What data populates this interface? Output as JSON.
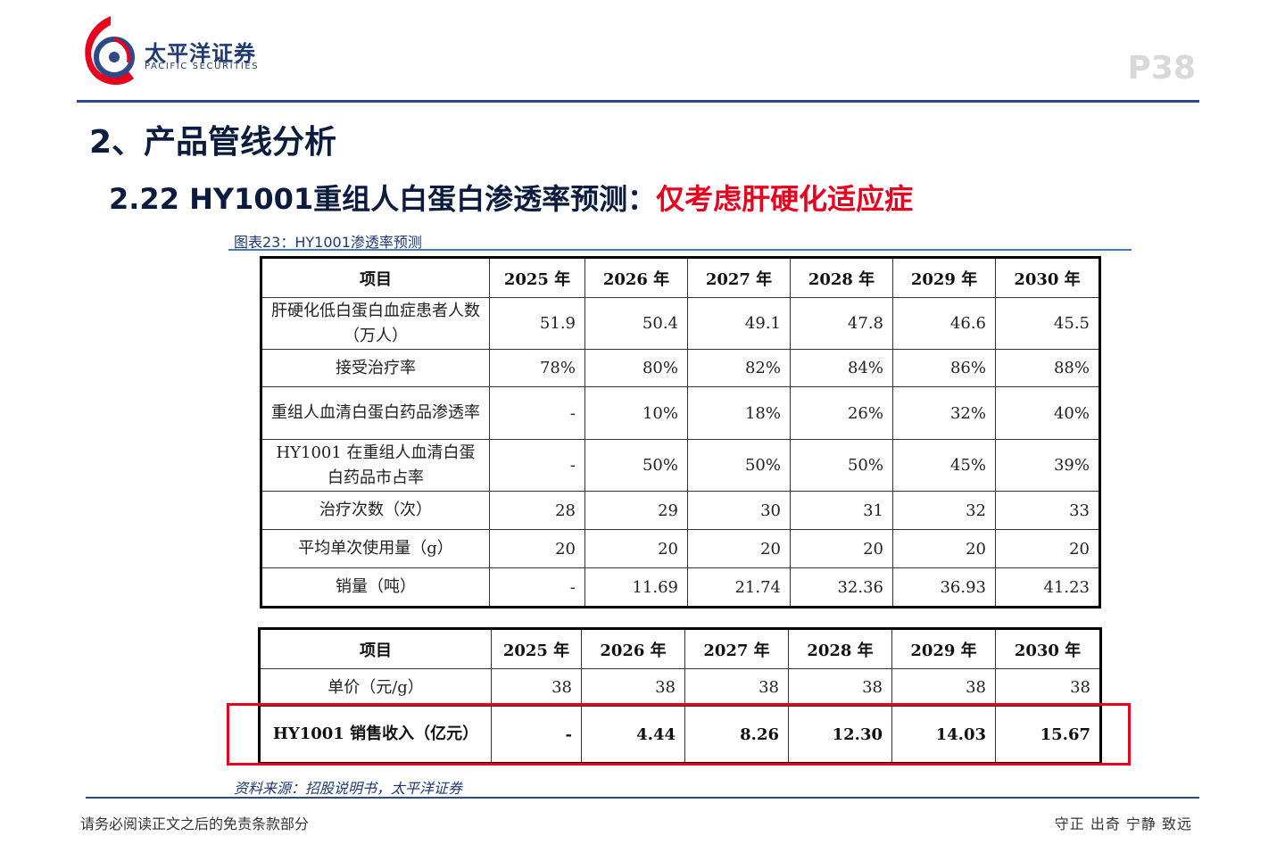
{
  "header": {
    "brand_cn": "太平洋证券",
    "brand_en": "PACIFIC SECURITIES",
    "page_number": "P38",
    "logo_icon": "pacific-securities-logo-icon",
    "brand_color": "#1f3a73",
    "accent_red": "#e8001c"
  },
  "section_title": "2、产品管线分析",
  "subtitle": {
    "prefix": "2.22 HY1001重组人白蛋白渗透率预测：",
    "highlight": "仅考虑肝硬化适应症"
  },
  "figure_caption": "图表23：HY1001渗透率预测",
  "table1": {
    "headers": [
      "项目",
      "2025 年",
      "2026 年",
      "2027 年",
      "2028 年",
      "2029 年",
      "2030 年"
    ],
    "rows": [
      {
        "label": "肝硬化低白蛋白血症患者人数（万人）",
        "values": [
          "51.9",
          "50.4",
          "49.1",
          "47.8",
          "46.6",
          "45.5"
        ]
      },
      {
        "label": "接受治疗率",
        "values": [
          "78%",
          "80%",
          "82%",
          "84%",
          "86%",
          "88%"
        ]
      },
      {
        "label": "重组人血清白蛋白药品渗透率",
        "values": [
          "-",
          "10%",
          "18%",
          "26%",
          "32%",
          "40%"
        ]
      },
      {
        "label": "HY1001 在重组人血清白蛋白药品市占率",
        "values": [
          "-",
          "50%",
          "50%",
          "50%",
          "45%",
          "39%"
        ]
      },
      {
        "label": "治疗次数（次）",
        "values": [
          "28",
          "29",
          "30",
          "31",
          "32",
          "33"
        ]
      },
      {
        "label": "平均单次使用量（g）",
        "values": [
          "20",
          "20",
          "20",
          "20",
          "20",
          "20"
        ]
      },
      {
        "label": "销量（吨）",
        "values": [
          "-",
          "11.69",
          "21.74",
          "32.36",
          "36.93",
          "41.23"
        ]
      }
    ]
  },
  "table2": {
    "headers": [
      "项目",
      "2025 年",
      "2026 年",
      "2027 年",
      "2028 年",
      "2029 年",
      "2030 年"
    ],
    "rows": [
      {
        "label": "单价（元/g）",
        "values": [
          "38",
          "38",
          "38",
          "38",
          "38",
          "38"
        ]
      },
      {
        "label": "HY1001 销售收入（亿元）",
        "values": [
          "-",
          "4.44",
          "8.26",
          "12.30",
          "14.03",
          "15.67"
        ]
      }
    ]
  },
  "source_note": "资料来源：招股说明书，太平洋证券",
  "footer": {
    "disclaimer": "请务必阅读正文之后的免责条款部分",
    "motto": "守正 出奇 宁静 致远"
  }
}
